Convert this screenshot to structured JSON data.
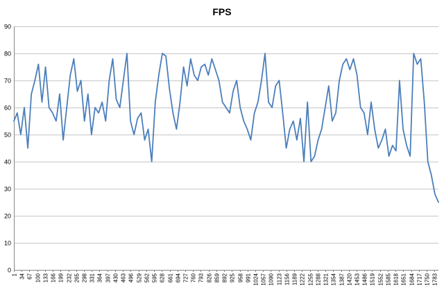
{
  "chart_data": {
    "type": "line",
    "title": "FPS",
    "xlabel": "",
    "ylabel": "",
    "ylim": [
      0,
      90
    ],
    "yticks": [
      0,
      10,
      20,
      30,
      40,
      50,
      60,
      70,
      80,
      90
    ],
    "xlim": [
      1,
      1800
    ],
    "xticks": [
      1,
      34,
      67,
      100,
      133,
      166,
      199,
      232,
      265,
      298,
      331,
      364,
      397,
      430,
      463,
      496,
      529,
      562,
      595,
      628,
      661,
      694,
      727,
      760,
      793,
      826,
      859,
      892,
      925,
      958,
      991,
      1024,
      1057,
      1090,
      1123,
      1156,
      1189,
      1222,
      1255,
      1288,
      1321,
      1354,
      1387,
      1420,
      1453,
      1486,
      1519,
      1552,
      1585,
      1618,
      1651,
      1684,
      1717,
      1750,
      1783
    ],
    "grid": "horizontal",
    "legend": "none",
    "series": [
      {
        "color": "#4a7ebb",
        "x": [
          1,
          15,
          30,
          45,
          60,
          75,
          90,
          105,
          120,
          135,
          150,
          165,
          180,
          195,
          210,
          225,
          240,
          255,
          270,
          285,
          300,
          315,
          330,
          345,
          360,
          375,
          390,
          405,
          420,
          435,
          450,
          465,
          480,
          495,
          510,
          525,
          540,
          555,
          570,
          585,
          600,
          615,
          630,
          645,
          660,
          675,
          690,
          705,
          720,
          735,
          750,
          765,
          780,
          795,
          810,
          825,
          840,
          855,
          870,
          885,
          900,
          915,
          930,
          945,
          960,
          975,
          990,
          1005,
          1020,
          1035,
          1050,
          1065,
          1080,
          1095,
          1110,
          1125,
          1140,
          1155,
          1170,
          1185,
          1200,
          1215,
          1230,
          1245,
          1260,
          1275,
          1290,
          1305,
          1320,
          1335,
          1350,
          1365,
          1380,
          1395,
          1410,
          1425,
          1440,
          1455,
          1470,
          1485,
          1500,
          1515,
          1530,
          1545,
          1560,
          1575,
          1590,
          1605,
          1620,
          1635,
          1650,
          1665,
          1680,
          1695,
          1710,
          1725,
          1740,
          1755,
          1770,
          1785,
          1800
        ],
        "y": [
          55,
          58,
          50,
          60,
          45,
          65,
          70,
          76,
          62,
          75,
          60,
          58,
          55,
          65,
          48,
          60,
          72,
          78,
          66,
          70,
          55,
          65,
          50,
          60,
          58,
          62,
          55,
          70,
          78,
          63,
          60,
          70,
          80,
          55,
          50,
          56,
          58,
          48,
          52,
          40,
          62,
          72,
          80,
          79,
          67,
          58,
          52,
          62,
          75,
          68,
          78,
          72,
          70,
          75,
          76,
          72,
          78,
          74,
          70,
          62,
          60,
          58,
          66,
          70,
          60,
          55,
          52,
          48,
          58,
          62,
          70,
          80,
          62,
          60,
          68,
          70,
          58,
          45,
          52,
          55,
          48,
          56,
          40,
          62,
          40,
          42,
          48,
          52,
          60,
          68,
          55,
          58,
          70,
          76,
          78,
          74,
          78,
          72,
          60,
          58,
          50,
          62,
          52,
          45,
          48,
          52,
          42,
          46,
          44,
          70,
          52,
          46,
          42,
          80,
          76,
          78,
          62,
          40,
          35,
          28,
          25
        ]
      }
    ]
  }
}
